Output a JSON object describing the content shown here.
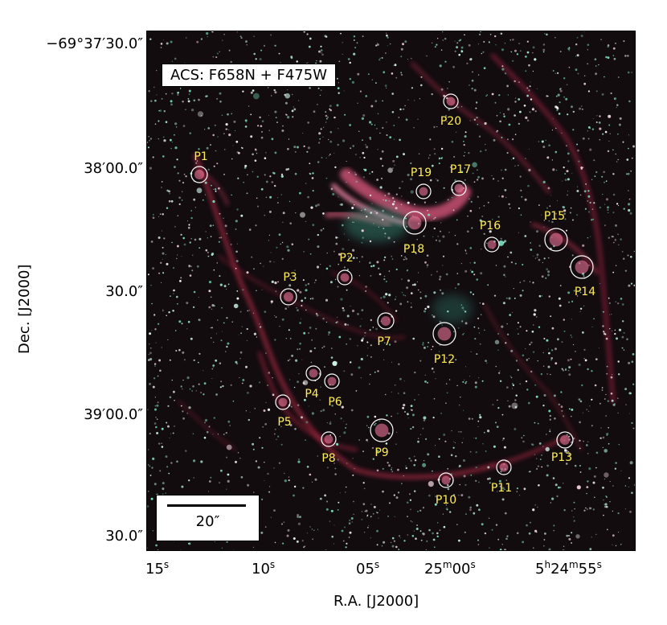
{
  "figure": {
    "filter_label": "ACS: F658N + F475W",
    "scale_label": "20″",
    "y_axis_title": "Dec. [J2000]",
    "x_axis_title": "R.A. [J2000]",
    "y_ticks": [
      {
        "main": "−69°37′30.0″"
      },
      {
        "main": "38′00.0″"
      },
      {
        "main": "30.0″"
      },
      {
        "main": "39′00.0″"
      },
      {
        "main": "30.0″"
      }
    ],
    "x_ticks": [
      {
        "main": "15",
        "unit": "s"
      },
      {
        "main": "10",
        "unit": "s"
      },
      {
        "main": "05",
        "unit": "s"
      },
      {
        "main": "25",
        "unit": "m",
        "main2": "00",
        "unit2": "s"
      },
      {
        "main": "5",
        "unit": "h",
        "main2": "24",
        "unit2": "m",
        "main3": "55",
        "unit3": "s"
      }
    ],
    "regions": [
      "P1",
      "P2",
      "P3",
      "P4",
      "P5",
      "P6",
      "P7",
      "P8",
      "P9",
      "P10",
      "P11",
      "P12",
      "P13",
      "P14",
      "P15",
      "P16",
      "P17",
      "P18",
      "P19",
      "P20"
    ],
    "colors": {
      "background": "#120c0f",
      "nebula": "#c0304a",
      "stars": "#6fe3c0",
      "labels": "#ffee55"
    }
  }
}
